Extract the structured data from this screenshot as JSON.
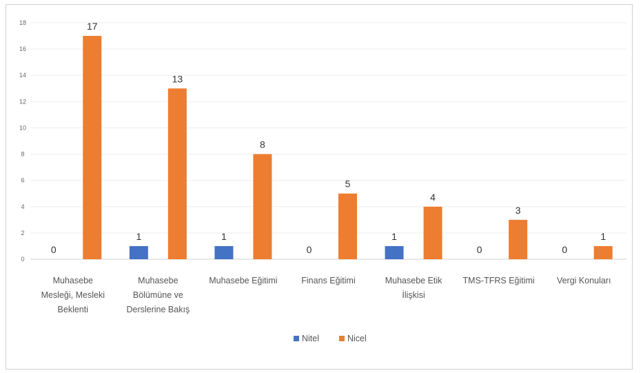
{
  "chart_data": {
    "type": "bar",
    "title": "",
    "xlabel": "",
    "ylabel": "",
    "ylim": [
      0,
      18
    ],
    "yticks": [
      0,
      2,
      4,
      6,
      8,
      10,
      12,
      14,
      16,
      18
    ],
    "grid": true,
    "legend_position": "bottom",
    "categories": [
      [
        "Muhasebe",
        "Mesleği, Mesleki",
        "Beklenti"
      ],
      [
        "Muhasebe",
        "Bölümüne ve",
        "Derslerine Bakış"
      ],
      [
        "Muhasebe Eğitimi"
      ],
      [
        "Finans Eğitimi"
      ],
      [
        "Muhasebe Etik",
        "İlişkisi"
      ],
      [
        "TMS-TFRS Eğitimi"
      ],
      [
        "Vergi Konuları"
      ]
    ],
    "series": [
      {
        "name": "Nitel",
        "color": "#4472c4",
        "values": [
          0,
          1,
          1,
          0,
          1,
          0,
          0
        ]
      },
      {
        "name": "Nicel",
        "color": "#ed7d31",
        "values": [
          17,
          13,
          8,
          5,
          4,
          3,
          1
        ]
      }
    ]
  }
}
